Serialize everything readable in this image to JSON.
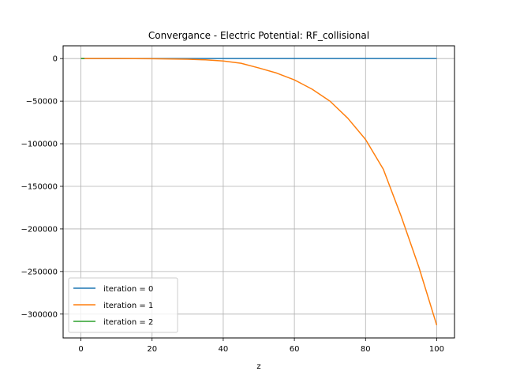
{
  "chart_data": {
    "type": "line",
    "title": "Convergance  - Electric Potential: RF_collisional",
    "xlabel": "z",
    "ylabel": "",
    "xlim": [
      -5,
      105
    ],
    "ylim": [
      -328000,
      15000
    ],
    "xticks": [
      0,
      20,
      40,
      60,
      80,
      100
    ],
    "yticks": [
      0,
      -50000,
      -100000,
      -150000,
      -200000,
      -250000,
      -300000
    ],
    "xtick_labels": [
      "0",
      "20",
      "40",
      "60",
      "80",
      "100"
    ],
    "ytick_labels": [
      "0",
      "−50000",
      "−100000",
      "−150000",
      "−200000",
      "−250000",
      "−300000"
    ],
    "grid": true,
    "legend_position": "lower-left",
    "series": [
      {
        "name": "iteration = 0",
        "color": "#1f77b4",
        "x": [
          0,
          10,
          20,
          30,
          40,
          50,
          60,
          70,
          80,
          90,
          100
        ],
        "y": [
          0,
          0,
          0,
          0,
          0,
          0,
          0,
          0,
          0,
          0,
          0
        ]
      },
      {
        "name": "iteration = 1",
        "color": "#ff7f0e",
        "x": [
          0,
          10,
          20,
          30,
          35,
          40,
          45,
          50,
          55,
          60,
          65,
          70,
          75,
          80,
          85,
          90,
          95,
          100
        ],
        "y": [
          0,
          0,
          -200,
          -800,
          -1500,
          -2800,
          -5500,
          -11000,
          -17000,
          -25000,
          -36000,
          -50000,
          -70000,
          -95000,
          -130000,
          -185000,
          -245000,
          -313000
        ]
      },
      {
        "name": "iteration = 2",
        "color": "#2ca02c",
        "x": [
          0,
          1
        ],
        "y": [
          0,
          0
        ]
      }
    ]
  }
}
